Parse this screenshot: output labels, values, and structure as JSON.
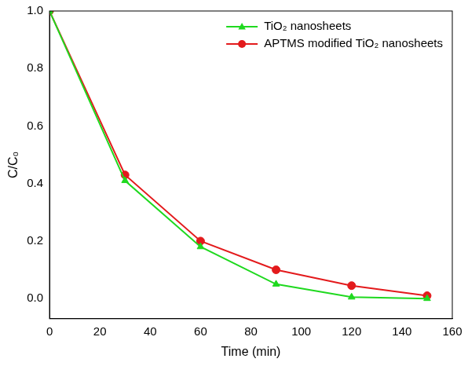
{
  "chart_data": {
    "type": "line",
    "x_label": "Time (min)",
    "y_label": "C/C₀",
    "x": [
      0,
      30,
      60,
      90,
      120,
      150
    ],
    "series": [
      {
        "name": "TiO₂ nanosheets",
        "color": "#1fd91f",
        "marker": "triangle",
        "values": [
          1.0,
          0.41,
          0.18,
          0.05,
          0.005,
          0.0
        ]
      },
      {
        "name": "APTMS modified TiO₂ nanosheets",
        "color": "#e31a1c",
        "marker": "circle",
        "values": [
          1.0,
          0.43,
          0.2,
          0.1,
          0.045,
          0.01
        ]
      }
    ],
    "xlim": [
      0,
      160
    ],
    "xticks": [
      0,
      20,
      40,
      60,
      80,
      100,
      120,
      140,
      160
    ],
    "ylim": [
      -0.07,
      1.0
    ],
    "yticks": [
      {
        "value": 0,
        "label": "0.0"
      },
      0.2,
      0.4,
      0.6,
      0.8,
      {
        "value": 1,
        "label": "1.0"
      }
    ],
    "grid": false,
    "legend": "upper right"
  }
}
